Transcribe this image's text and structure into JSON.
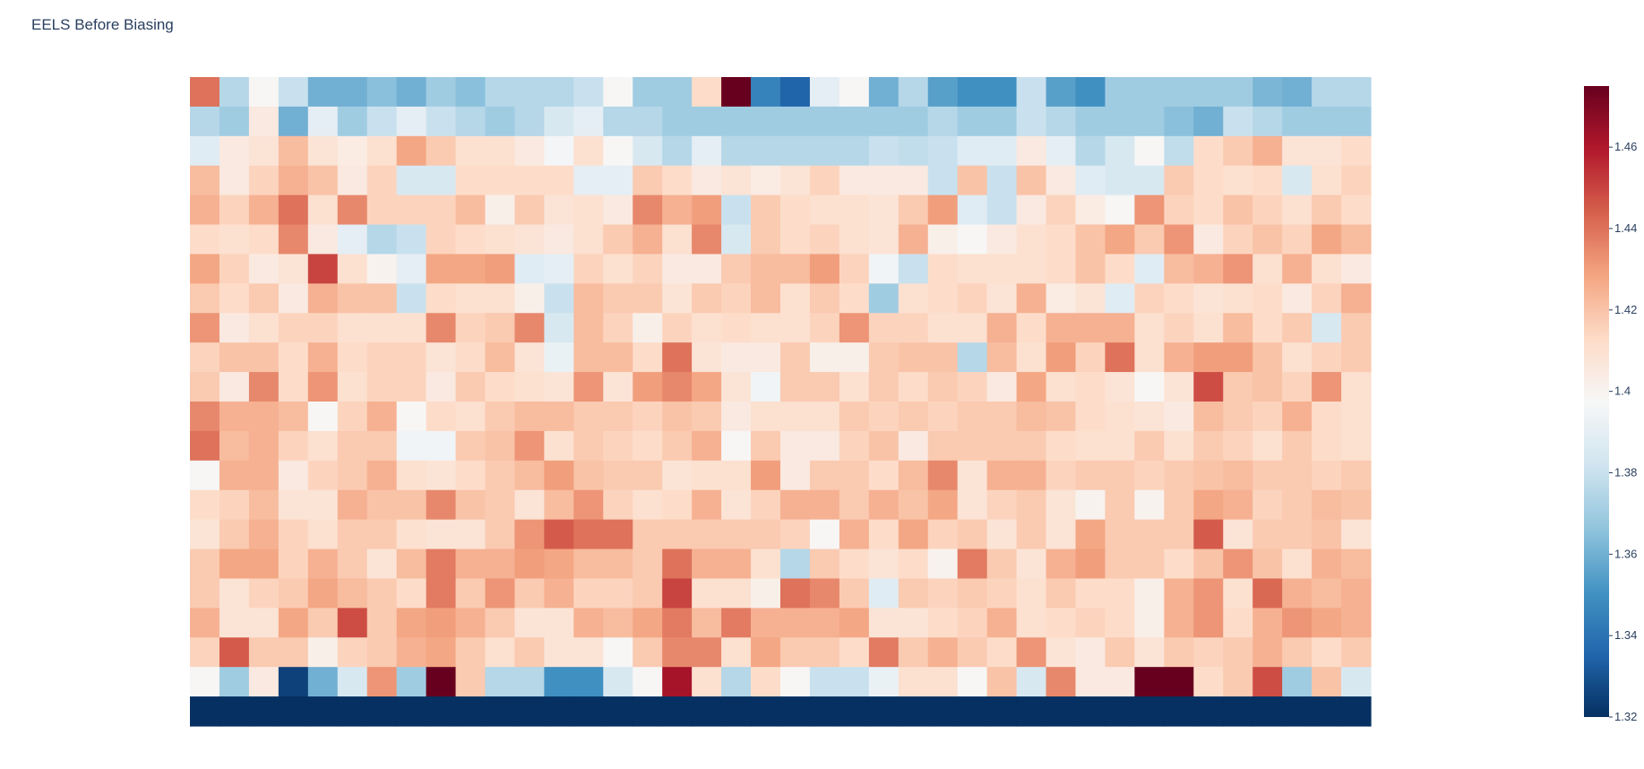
{
  "chart_data": {
    "type": "heatmap",
    "title": "EELS Before Biasing",
    "xlabel": "",
    "ylabel": "",
    "rows": 22,
    "cols": 40,
    "colorscale": "RdBu reversed",
    "zmin": 1.32,
    "zmax": 1.475,
    "colorbar_ticks": [
      "1.46",
      "1.44",
      "1.42",
      "1.4",
      "1.38",
      "1.36",
      "1.34",
      "1.32"
    ],
    "colorbar_tick_values": [
      1.46,
      1.44,
      1.42,
      1.4,
      1.38,
      1.36,
      1.34,
      1.32
    ],
    "z": [
      [
        1.44,
        1.375,
        1.398,
        1.38,
        1.36,
        1.36,
        1.365,
        1.36,
        1.37,
        1.365,
        1.375,
        1.375,
        1.375,
        1.38,
        1.398,
        1.37,
        1.37,
        1.412,
        1.475,
        1.345,
        1.335,
        1.39,
        1.398,
        1.36,
        1.375,
        1.355,
        1.35,
        1.35,
        1.38,
        1.355,
        1.35,
        1.37,
        1.37,
        1.37,
        1.37,
        1.37,
        1.362,
        1.36,
        1.375,
        1.375
      ],
      [
        1.375,
        1.37,
        1.405,
        1.36,
        1.39,
        1.37,
        1.38,
        1.39,
        1.38,
        1.375,
        1.37,
        1.375,
        1.385,
        1.39,
        1.375,
        1.375,
        1.37,
        1.37,
        1.37,
        1.37,
        1.37,
        1.37,
        1.37,
        1.37,
        1.37,
        1.375,
        1.37,
        1.37,
        1.38,
        1.375,
        1.37,
        1.37,
        1.37,
        1.365,
        1.36,
        1.38,
        1.375,
        1.37,
        1.37,
        1.37
      ],
      [
        1.388,
        1.405,
        1.408,
        1.422,
        1.408,
        1.404,
        1.41,
        1.428,
        1.418,
        1.41,
        1.41,
        1.405,
        1.396,
        1.41,
        1.398,
        1.385,
        1.375,
        1.39,
        1.375,
        1.375,
        1.375,
        1.375,
        1.375,
        1.38,
        1.378,
        1.38,
        1.388,
        1.388,
        1.405,
        1.39,
        1.375,
        1.385,
        1.398,
        1.378,
        1.412,
        1.418,
        1.425,
        1.408,
        1.408,
        1.412
      ],
      [
        1.422,
        1.405,
        1.415,
        1.425,
        1.42,
        1.405,
        1.415,
        1.385,
        1.385,
        1.412,
        1.412,
        1.412,
        1.412,
        1.39,
        1.39,
        1.418,
        1.412,
        1.405,
        1.408,
        1.404,
        1.408,
        1.415,
        1.405,
        1.405,
        1.405,
        1.38,
        1.42,
        1.38,
        1.42,
        1.405,
        1.388,
        1.385,
        1.385,
        1.418,
        1.412,
        1.41,
        1.412,
        1.385,
        1.41,
        1.415
      ],
      [
        1.425,
        1.415,
        1.425,
        1.44,
        1.41,
        1.435,
        1.415,
        1.415,
        1.415,
        1.422,
        1.402,
        1.418,
        1.408,
        1.41,
        1.405,
        1.435,
        1.425,
        1.43,
        1.38,
        1.418,
        1.412,
        1.41,
        1.41,
        1.408,
        1.418,
        1.43,
        1.388,
        1.38,
        1.405,
        1.415,
        1.404,
        1.398,
        1.432,
        1.415,
        1.412,
        1.42,
        1.415,
        1.41,
        1.418,
        1.412
      ],
      [
        1.412,
        1.41,
        1.412,
        1.435,
        1.405,
        1.39,
        1.375,
        1.38,
        1.415,
        1.412,
        1.41,
        1.408,
        1.405,
        1.41,
        1.418,
        1.425,
        1.41,
        1.435,
        1.385,
        1.418,
        1.412,
        1.415,
        1.41,
        1.408,
        1.425,
        1.402,
        1.398,
        1.405,
        1.41,
        1.412,
        1.42,
        1.428,
        1.418,
        1.432,
        1.405,
        1.415,
        1.42,
        1.415,
        1.428,
        1.422
      ],
      [
        1.428,
        1.415,
        1.405,
        1.408,
        1.45,
        1.41,
        1.4,
        1.39,
        1.428,
        1.428,
        1.43,
        1.388,
        1.39,
        1.415,
        1.41,
        1.415,
        1.405,
        1.405,
        1.418,
        1.422,
        1.422,
        1.43,
        1.415,
        1.395,
        1.38,
        1.412,
        1.41,
        1.41,
        1.41,
        1.412,
        1.42,
        1.412,
        1.388,
        1.422,
        1.425,
        1.432,
        1.41,
        1.425,
        1.41,
        1.405
      ],
      [
        1.418,
        1.412,
        1.418,
        1.405,
        1.425,
        1.42,
        1.42,
        1.38,
        1.412,
        1.41,
        1.41,
        1.402,
        1.38,
        1.422,
        1.418,
        1.418,
        1.408,
        1.418,
        1.415,
        1.422,
        1.41,
        1.418,
        1.412,
        1.37,
        1.41,
        1.412,
        1.415,
        1.408,
        1.425,
        1.404,
        1.408,
        1.388,
        1.415,
        1.412,
        1.408,
        1.41,
        1.412,
        1.405,
        1.415,
        1.425
      ],
      [
        1.432,
        1.405,
        1.41,
        1.415,
        1.415,
        1.41,
        1.41,
        1.41,
        1.435,
        1.415,
        1.418,
        1.435,
        1.385,
        1.422,
        1.415,
        1.402,
        1.415,
        1.41,
        1.412,
        1.41,
        1.41,
        1.415,
        1.432,
        1.415,
        1.415,
        1.41,
        1.41,
        1.425,
        1.412,
        1.425,
        1.425,
        1.425,
        1.41,
        1.415,
        1.41,
        1.422,
        1.412,
        1.418,
        1.385,
        1.418
      ],
      [
        1.415,
        1.42,
        1.42,
        1.412,
        1.425,
        1.412,
        1.415,
        1.415,
        1.408,
        1.412,
        1.422,
        1.408,
        1.392,
        1.422,
        1.422,
        1.412,
        1.44,
        1.408,
        1.405,
        1.405,
        1.418,
        1.402,
        1.402,
        1.418,
        1.42,
        1.42,
        1.375,
        1.422,
        1.41,
        1.43,
        1.415,
        1.44,
        1.41,
        1.425,
        1.43,
        1.43,
        1.42,
        1.41,
        1.415,
        1.418
      ],
      [
        1.418,
        1.405,
        1.435,
        1.412,
        1.432,
        1.41,
        1.415,
        1.415,
        1.405,
        1.418,
        1.412,
        1.41,
        1.408,
        1.432,
        1.408,
        1.43,
        1.435,
        1.428,
        1.408,
        1.395,
        1.418,
        1.418,
        1.41,
        1.418,
        1.412,
        1.418,
        1.415,
        1.405,
        1.428,
        1.41,
        1.412,
        1.408,
        1.398,
        1.408,
        1.448,
        1.418,
        1.42,
        1.415,
        1.432,
        1.41
      ],
      [
        1.435,
        1.425,
        1.425,
        1.422,
        1.398,
        1.415,
        1.425,
        1.398,
        1.412,
        1.41,
        1.418,
        1.422,
        1.422,
        1.418,
        1.418,
        1.415,
        1.42,
        1.418,
        1.405,
        1.41,
        1.41,
        1.41,
        1.418,
        1.415,
        1.418,
        1.415,
        1.418,
        1.418,
        1.422,
        1.42,
        1.412,
        1.41,
        1.408,
        1.405,
        1.422,
        1.418,
        1.415,
        1.425,
        1.412,
        1.41
      ],
      [
        1.44,
        1.422,
        1.425,
        1.415,
        1.41,
        1.418,
        1.418,
        1.395,
        1.395,
        1.418,
        1.42,
        1.432,
        1.41,
        1.418,
        1.415,
        1.412,
        1.418,
        1.425,
        1.398,
        1.418,
        1.405,
        1.405,
        1.415,
        1.42,
        1.405,
        1.418,
        1.418,
        1.418,
        1.418,
        1.412,
        1.41,
        1.41,
        1.418,
        1.41,
        1.418,
        1.415,
        1.41,
        1.418,
        1.412,
        1.41
      ],
      [
        1.398,
        1.425,
        1.425,
        1.405,
        1.415,
        1.418,
        1.425,
        1.41,
        1.408,
        1.412,
        1.418,
        1.422,
        1.43,
        1.42,
        1.418,
        1.418,
        1.408,
        1.41,
        1.41,
        1.43,
        1.405,
        1.418,
        1.418,
        1.412,
        1.422,
        1.435,
        1.408,
        1.425,
        1.425,
        1.415,
        1.418,
        1.418,
        1.415,
        1.418,
        1.42,
        1.422,
        1.418,
        1.418,
        1.415,
        1.418
      ],
      [
        1.412,
        1.415,
        1.422,
        1.408,
        1.408,
        1.425,
        1.42,
        1.42,
        1.435,
        1.42,
        1.418,
        1.408,
        1.422,
        1.432,
        1.415,
        1.41,
        1.412,
        1.425,
        1.408,
        1.415,
        1.425,
        1.425,
        1.418,
        1.425,
        1.42,
        1.428,
        1.408,
        1.415,
        1.418,
        1.408,
        1.4,
        1.418,
        1.4,
        1.418,
        1.428,
        1.425,
        1.415,
        1.418,
        1.422,
        1.42
      ],
      [
        1.408,
        1.418,
        1.425,
        1.415,
        1.41,
        1.418,
        1.418,
        1.41,
        1.408,
        1.408,
        1.418,
        1.432,
        1.445,
        1.44,
        1.44,
        1.418,
        1.418,
        1.418,
        1.418,
        1.418,
        1.415,
        1.398,
        1.425,
        1.412,
        1.428,
        1.415,
        1.418,
        1.408,
        1.418,
        1.408,
        1.428,
        1.418,
        1.418,
        1.418,
        1.445,
        1.408,
        1.418,
        1.418,
        1.42,
        1.408
      ],
      [
        1.418,
        1.428,
        1.428,
        1.415,
        1.425,
        1.418,
        1.408,
        1.422,
        1.438,
        1.425,
        1.425,
        1.43,
        1.428,
        1.422,
        1.422,
        1.418,
        1.44,
        1.425,
        1.425,
        1.41,
        1.375,
        1.418,
        1.412,
        1.408,
        1.412,
        1.4,
        1.438,
        1.418,
        1.408,
        1.425,
        1.43,
        1.418,
        1.418,
        1.412,
        1.42,
        1.432,
        1.42,
        1.41,
        1.425,
        1.422
      ],
      [
        1.418,
        1.408,
        1.415,
        1.418,
        1.428,
        1.422,
        1.418,
        1.412,
        1.438,
        1.418,
        1.432,
        1.418,
        1.425,
        1.415,
        1.415,
        1.418,
        1.45,
        1.41,
        1.41,
        1.402,
        1.44,
        1.435,
        1.418,
        1.388,
        1.418,
        1.415,
        1.418,
        1.415,
        1.41,
        1.418,
        1.412,
        1.412,
        1.402,
        1.425,
        1.432,
        1.41,
        1.442,
        1.425,
        1.422,
        1.425
      ],
      [
        1.425,
        1.408,
        1.408,
        1.428,
        1.418,
        1.448,
        1.418,
        1.428,
        1.43,
        1.425,
        1.418,
        1.408,
        1.408,
        1.425,
        1.422,
        1.428,
        1.438,
        1.422,
        1.438,
        1.425,
        1.425,
        1.425,
        1.428,
        1.408,
        1.408,
        1.412,
        1.415,
        1.425,
        1.41,
        1.412,
        1.415,
        1.412,
        1.402,
        1.425,
        1.432,
        1.412,
        1.425,
        1.432,
        1.428,
        1.425
      ],
      [
        1.415,
        1.445,
        1.418,
        1.418,
        1.402,
        1.415,
        1.418,
        1.425,
        1.428,
        1.418,
        1.41,
        1.418,
        1.408,
        1.408,
        1.398,
        1.418,
        1.435,
        1.435,
        1.41,
        1.428,
        1.418,
        1.418,
        1.412,
        1.438,
        1.418,
        1.425,
        1.418,
        1.412,
        1.432,
        1.408,
        1.405,
        1.418,
        1.408,
        1.418,
        1.415,
        1.418,
        1.425,
        1.418,
        1.412,
        1.418
      ],
      [
        1.398,
        1.37,
        1.405,
        1.325,
        1.36,
        1.385,
        1.432,
        1.37,
        1.475,
        1.418,
        1.375,
        1.375,
        1.35,
        1.35,
        1.385,
        1.398,
        1.462,
        1.41,
        1.375,
        1.412,
        1.398,
        1.38,
        1.38,
        1.392,
        1.41,
        1.41,
        1.398,
        1.42,
        1.385,
        1.435,
        1.405,
        1.405,
        1.475,
        1.475,
        1.412,
        1.418,
        1.448,
        1.37,
        1.42,
        1.385
      ],
      [
        1.32,
        1.32,
        1.32,
        1.32,
        1.32,
        1.32,
        1.32,
        1.32,
        1.32,
        1.32,
        1.32,
        1.32,
        1.32,
        1.32,
        1.32,
        1.32,
        1.32,
        1.32,
        1.32,
        1.32,
        1.32,
        1.32,
        1.32,
        1.32,
        1.32,
        1.32,
        1.32,
        1.32,
        1.32,
        1.32,
        1.32,
        1.32,
        1.32,
        1.32,
        1.32,
        1.32,
        1.32,
        1.32,
        1.32,
        1.32
      ]
    ]
  }
}
